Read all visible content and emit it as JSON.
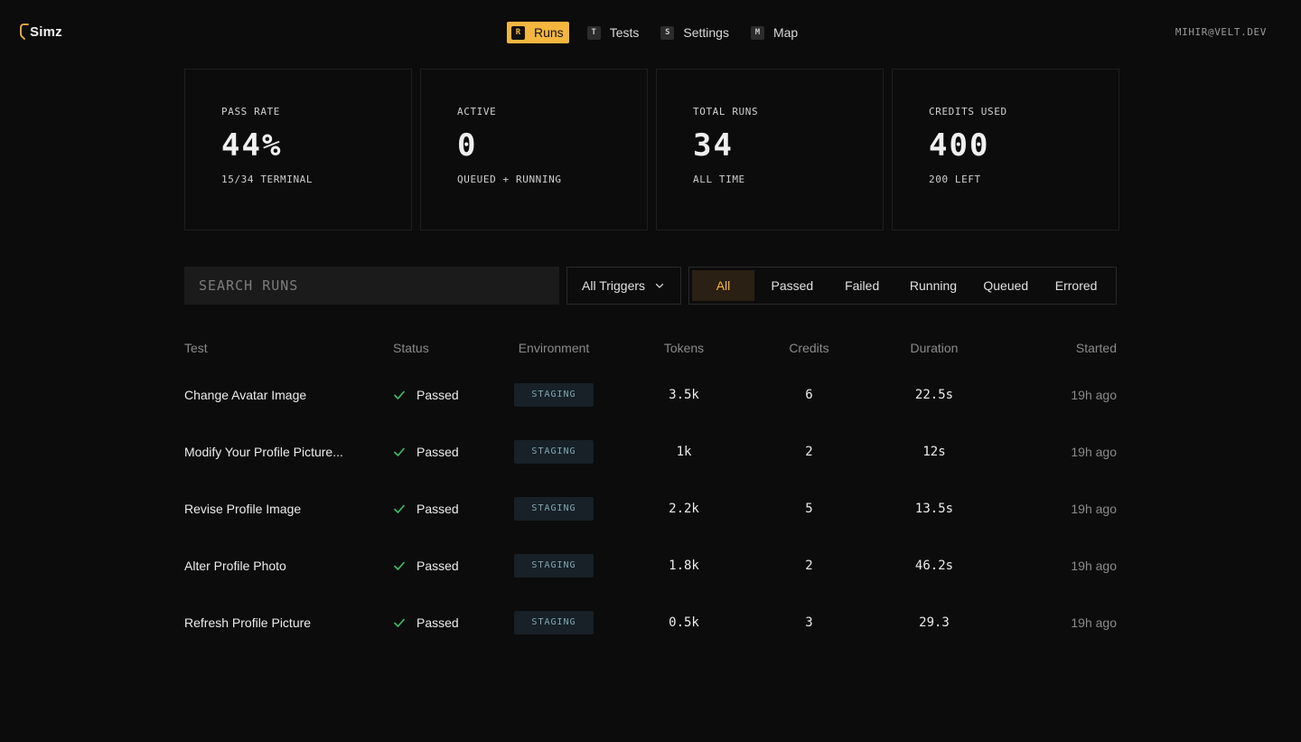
{
  "brand": {
    "name": "Simz",
    "accent": "#f4b63f"
  },
  "nav": [
    {
      "key": "R",
      "label": "Runs",
      "active": true
    },
    {
      "key": "T",
      "label": "Tests",
      "active": false
    },
    {
      "key": "S",
      "label": "Settings",
      "active": false
    },
    {
      "key": "M",
      "label": "Map",
      "active": false
    }
  ],
  "user": {
    "email": "MIHIR@VELT.DEV"
  },
  "stats": [
    {
      "label": "PASS RATE",
      "value": "44%",
      "sub": "15/34 TERMINAL"
    },
    {
      "label": "ACTIVE",
      "value": "0",
      "sub": "QUEUED + RUNNING"
    },
    {
      "label": "TOTAL RUNS",
      "value": "34",
      "sub": "ALL TIME"
    },
    {
      "label": "CREDITS USED",
      "value": "400",
      "sub": "200 LEFT"
    }
  ],
  "filters": {
    "search_placeholder": "SEARCH RUNS",
    "search_value": "",
    "trigger": "All Triggers",
    "status_tabs": [
      "All",
      "Passed",
      "Failed",
      "Running",
      "Queued",
      "Errored"
    ],
    "active_tab": "All"
  },
  "table": {
    "columns": [
      "Test",
      "Status",
      "Environment",
      "Tokens",
      "Credits",
      "Duration",
      "Started"
    ],
    "rows": [
      {
        "test": "Change Avatar Image",
        "status": "Passed",
        "env": "STAGING",
        "tokens": "3.5k",
        "credits": "6",
        "duration": "22.5s",
        "started": "19h ago"
      },
      {
        "test": "Modify Your Profile Picture...",
        "status": "Passed",
        "env": "STAGING",
        "tokens": "1k",
        "credits": "2",
        "duration": "12s",
        "started": "19h ago"
      },
      {
        "test": "Revise Profile Image",
        "status": "Passed",
        "env": "STAGING",
        "tokens": "2.2k",
        "credits": "5",
        "duration": "13.5s",
        "started": "19h ago"
      },
      {
        "test": "Alter Profile Photo",
        "status": "Passed",
        "env": "STAGING",
        "tokens": "1.8k",
        "credits": "2",
        "duration": "46.2s",
        "started": "19h ago"
      },
      {
        "test": "Refresh Profile Picture",
        "status": "Passed",
        "env": "STAGING",
        "tokens": "0.5k",
        "credits": "3",
        "duration": "29.3",
        "started": "19h ago"
      }
    ]
  },
  "icons": {
    "status_passed": "check-icon",
    "dropdown": "chevron-down-icon"
  },
  "colors": {
    "passed": "#3fbf6a",
    "badge_bg": "#172127",
    "badge_text": "#7fa7b4"
  }
}
